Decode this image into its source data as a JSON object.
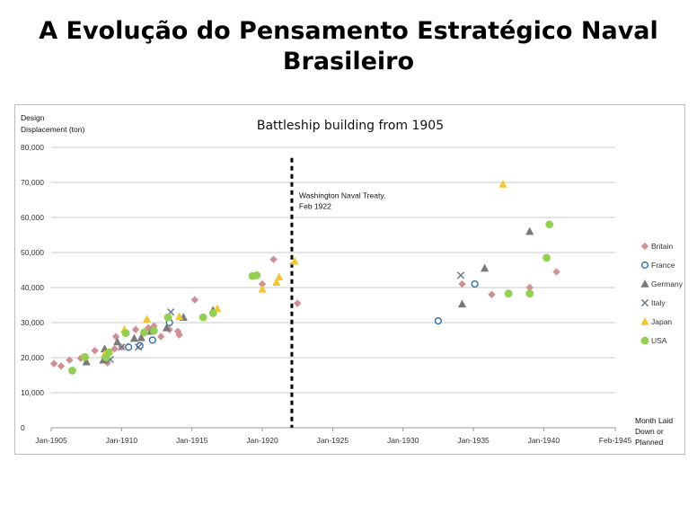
{
  "slide": {
    "title_line1": "A Evolução do Pensamento Estratégico Naval",
    "title_line2": "Brasileiro"
  },
  "chart_data": {
    "type": "scatter",
    "title": "Battleship building from 1905",
    "ylabel_line1": "Design",
    "ylabel_line2": "Displacement (ton)",
    "xlabel_line1": "Month Laid",
    "xlabel_line2": "Down or",
    "xlabel_line3": "Planned",
    "xlim": [
      1905,
      1945.08
    ],
    "ylim": [
      0,
      80000
    ],
    "x_ticks": [
      {
        "value": 1905,
        "label": "Jan-1905"
      },
      {
        "value": 1910,
        "label": "Jan-1910"
      },
      {
        "value": 1915,
        "label": "Jan-1915"
      },
      {
        "value": 1920,
        "label": "Jan-1920"
      },
      {
        "value": 1925,
        "label": "Jan-1925"
      },
      {
        "value": 1930,
        "label": "Jan-1930"
      },
      {
        "value": 1935,
        "label": "Jan-1935"
      },
      {
        "value": 1940,
        "label": "Jan-1940"
      },
      {
        "value": 1945.08,
        "label": "Feb-1945"
      }
    ],
    "y_ticks": [
      {
        "value": 0,
        "label": "0"
      },
      {
        "value": 10000,
        "label": "10,000"
      },
      {
        "value": 20000,
        "label": "20,000"
      },
      {
        "value": 30000,
        "label": "30,000"
      },
      {
        "value": 40000,
        "label": "40,000"
      },
      {
        "value": 50000,
        "label": "50,000"
      },
      {
        "value": 60000,
        "label": "60,000"
      },
      {
        "value": 70000,
        "label": "70,000"
      },
      {
        "value": 80000,
        "label": "80,000"
      }
    ],
    "grid": "horizontal",
    "legend_position": "right",
    "annotation": {
      "x": 1922.1,
      "line1": "Washington Naval Treaty,",
      "line2": "Feb 1922"
    },
    "series": [
      {
        "name": "Britain",
        "marker": "diamond",
        "color": "#cf8f93",
        "points": [
          [
            1905.2,
            18300
          ],
          [
            1905.7,
            17600
          ],
          [
            1906.3,
            19300
          ],
          [
            1907.1,
            19800
          ],
          [
            1908.1,
            22000
          ],
          [
            1909.0,
            18500
          ],
          [
            1909.5,
            22500
          ],
          [
            1909.6,
            26000
          ],
          [
            1910.0,
            23000
          ],
          [
            1910.5,
            23200
          ],
          [
            1911.0,
            28000
          ],
          [
            1911.9,
            28500
          ],
          [
            1912.3,
            29000
          ],
          [
            1912.8,
            26000
          ],
          [
            1913.4,
            28000
          ],
          [
            1914.0,
            27500
          ],
          [
            1914.1,
            26500
          ],
          [
            1915.2,
            36500
          ],
          [
            1920.0,
            41000
          ],
          [
            1920.8,
            48000
          ],
          [
            1922.5,
            35500
          ],
          [
            1934.2,
            41000
          ],
          [
            1936.3,
            38000
          ],
          [
            1939.0,
            40000
          ],
          [
            1940.9,
            44500
          ]
        ]
      },
      {
        "name": "France",
        "marker": "circle-open",
        "color": "#2e6fa7",
        "points": [
          [
            1910.5,
            23000
          ],
          [
            1911.3,
            23400
          ],
          [
            1912.2,
            25000
          ],
          [
            1913.4,
            30000
          ],
          [
            1932.5,
            30500
          ],
          [
            1935.1,
            41000
          ]
        ]
      },
      {
        "name": "Germany",
        "marker": "triangle",
        "color": "#7a7a7a",
        "points": [
          [
            1907.5,
            18800
          ],
          [
            1908.7,
            19300
          ],
          [
            1908.8,
            22500
          ],
          [
            1909.7,
            24500
          ],
          [
            1910.9,
            25500
          ],
          [
            1911.4,
            25700
          ],
          [
            1912.1,
            27500
          ],
          [
            1913.2,
            28500
          ],
          [
            1914.4,
            31500
          ],
          [
            1916.5,
            33500
          ],
          [
            1934.2,
            35300
          ],
          [
            1935.8,
            45500
          ],
          [
            1939.0,
            56000
          ]
        ]
      },
      {
        "name": "Italy",
        "marker": "x",
        "color": "#6e7a88",
        "points": [
          [
            1909.2,
            19500
          ],
          [
            1910.0,
            23000
          ],
          [
            1911.2,
            23000
          ],
          [
            1913.5,
            33000
          ],
          [
            1934.1,
            43500
          ]
        ]
      },
      {
        "name": "Japan",
        "marker": "triangle",
        "color": "#f5c72c",
        "points": [
          [
            1908.8,
            21000
          ],
          [
            1910.2,
            28000
          ],
          [
            1911.8,
            31000
          ],
          [
            1914.1,
            31700
          ],
          [
            1916.8,
            34000
          ],
          [
            1920.0,
            39500
          ],
          [
            1921.0,
            41500
          ],
          [
            1921.2,
            43000
          ],
          [
            1922.3,
            47500
          ],
          [
            1937.1,
            69500
          ]
        ]
      },
      {
        "name": "USA",
        "marker": "circle",
        "color": "#92d050",
        "points": [
          [
            1906.5,
            16300
          ],
          [
            1907.4,
            20200
          ],
          [
            1908.9,
            20100
          ],
          [
            1909.1,
            21500
          ],
          [
            1910.3,
            27000
          ],
          [
            1911.6,
            27200
          ],
          [
            1912.3,
            27700
          ],
          [
            1913.3,
            31500
          ],
          [
            1915.8,
            31500
          ],
          [
            1916.5,
            32700
          ],
          [
            1919.3,
            43300
          ],
          [
            1919.6,
            43500
          ],
          [
            1937.5,
            38300
          ],
          [
            1939.0,
            38300
          ],
          [
            1940.2,
            48500
          ],
          [
            1940.4,
            58000
          ]
        ]
      }
    ]
  }
}
